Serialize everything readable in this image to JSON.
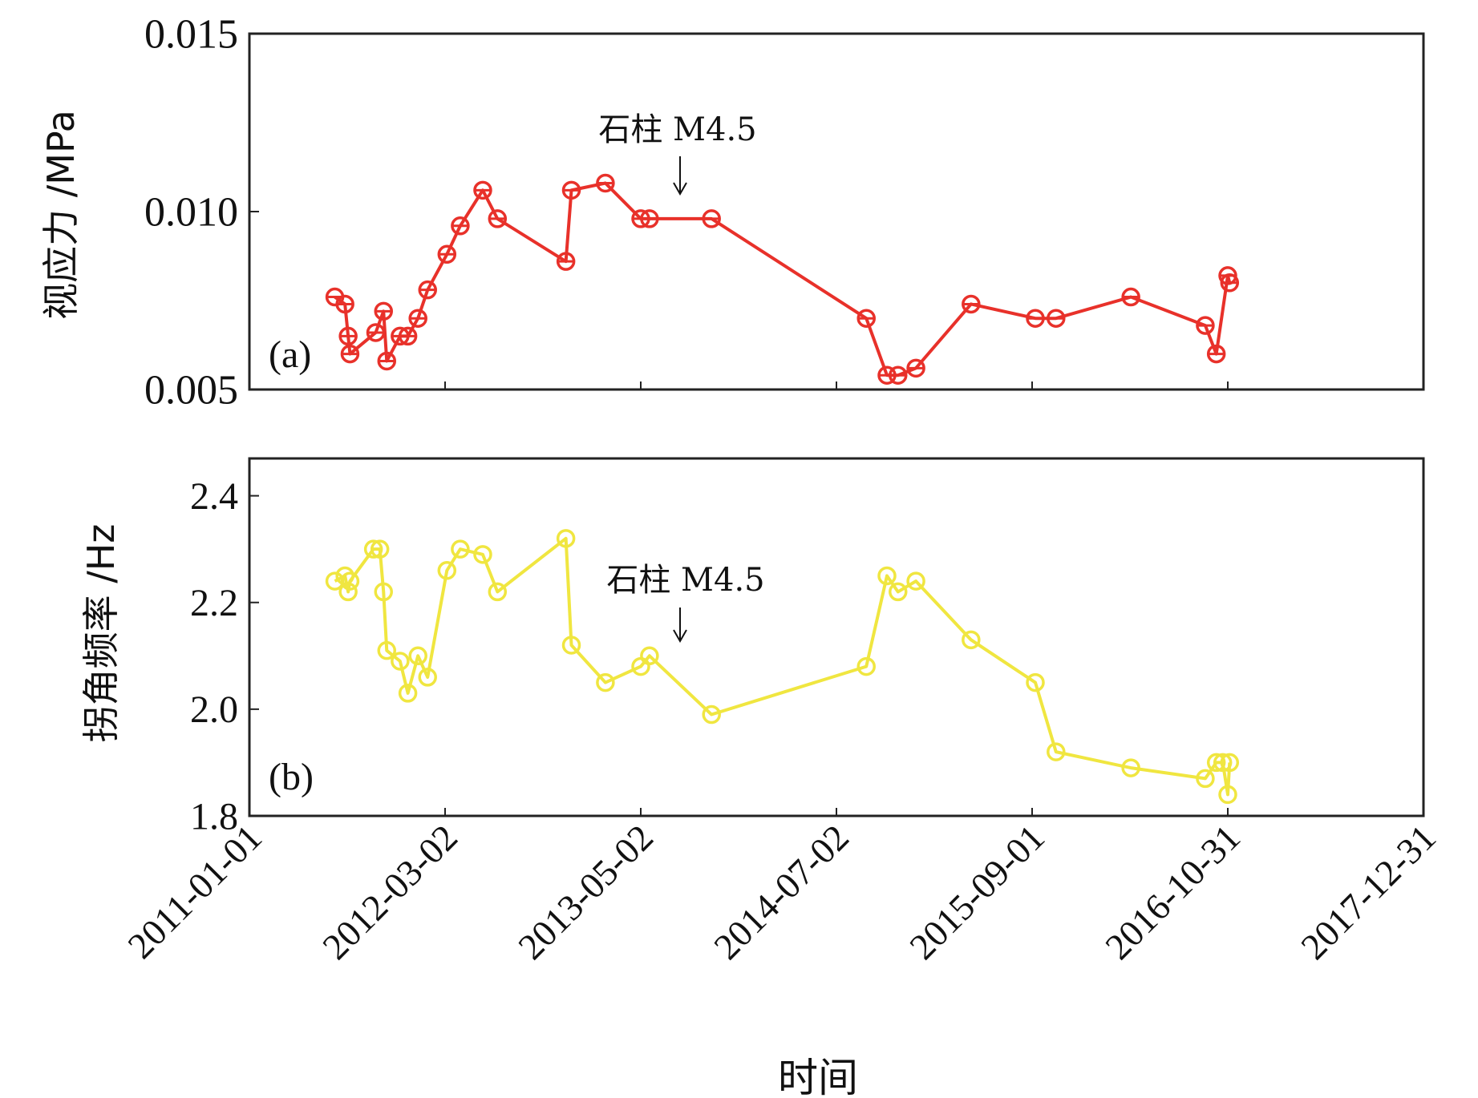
{
  "chart_data": [
    {
      "type": "line",
      "panel_label": "(a)",
      "ylabel": "视应力 /MPa",
      "ylim": [
        0.005,
        0.015
      ],
      "yticks": [
        "0.005",
        "0.010",
        "0.015"
      ],
      "ytick_values": [
        0.005,
        0.01,
        0.015
      ],
      "color": "#e8312a",
      "annotation": {
        "text": "石柱 M4.5",
        "x": "2013-07-14"
      },
      "series": [
        {
          "x": [
            "2011-07-06",
            "2011-07-28",
            "2011-08-04",
            "2011-08-08",
            "2011-10-03",
            "2011-10-20",
            "2011-10-27",
            "2011-11-25",
            "2011-12-12",
            "2012-01-03",
            "2012-01-24",
            "2012-03-06",
            "2012-04-04",
            "2012-05-23",
            "2012-06-24",
            "2012-11-20",
            "2012-12-02",
            "2013-02-14",
            "2013-05-02",
            "2013-05-21",
            "2013-10-03",
            "2014-09-05",
            "2014-10-20",
            "2014-11-13",
            "2014-12-22",
            "2015-04-21",
            "2015-09-08",
            "2015-10-23",
            "2016-04-03",
            "2016-09-12",
            "2016-10-06",
            "2016-10-31",
            "2016-11-04"
          ],
          "values": [
            0.0076,
            0.0074,
            0.0065,
            0.006,
            0.0066,
            0.0072,
            0.0058,
            0.0065,
            0.0065,
            0.007,
            0.0078,
            0.0088,
            0.0096,
            0.0106,
            0.0098,
            0.0086,
            0.0106,
            0.0108,
            0.0098,
            0.0098,
            0.0098,
            0.007,
            0.0054,
            0.0054,
            0.0056,
            0.0074,
            0.007,
            0.007,
            0.0076,
            0.0068,
            0.006,
            0.0082,
            0.008
          ]
        }
      ]
    },
    {
      "type": "line",
      "panel_label": "(b)",
      "ylabel": "拐角频率 /Hz",
      "ylim": [
        1.8,
        2.47
      ],
      "yticks": [
        "1.8",
        "2.0",
        "2.2",
        "2.4"
      ],
      "ytick_values": [
        1.8,
        2.0,
        2.2,
        2.4
      ],
      "color": "#f0e640",
      "annotation": {
        "text": "石柱 M4.5",
        "x": "2013-07-14"
      },
      "xlabel": "时间",
      "xticks": [
        "2011-01-01",
        "2012-03-02",
        "2013-05-02",
        "2014-07-02",
        "2015-09-01",
        "2016-10-31",
        "2017-12-31"
      ],
      "series": [
        {
          "x": [
            "2011-07-06",
            "2011-07-28",
            "2011-08-04",
            "2011-08-08",
            "2011-09-28",
            "2011-10-12",
            "2011-10-20",
            "2011-10-27",
            "2011-11-25",
            "2011-12-12",
            "2012-01-03",
            "2012-01-24",
            "2012-03-06",
            "2012-04-04",
            "2012-05-23",
            "2012-06-24",
            "2012-11-20",
            "2012-12-02",
            "2013-02-14",
            "2013-05-02",
            "2013-05-21",
            "2013-10-03",
            "2014-09-05",
            "2014-10-20",
            "2014-11-13",
            "2014-12-22",
            "2015-04-21",
            "2015-09-08",
            "2015-10-23",
            "2016-04-03",
            "2016-09-12",
            "2016-10-06",
            "2016-10-20",
            "2016-10-31",
            "2016-11-04"
          ],
          "values": [
            2.24,
            2.25,
            2.22,
            2.24,
            2.3,
            2.3,
            2.22,
            2.11,
            2.09,
            2.03,
            2.1,
            2.06,
            2.26,
            2.3,
            2.29,
            2.22,
            2.32,
            2.12,
            2.05,
            2.08,
            2.1,
            1.99,
            2.08,
            2.25,
            2.22,
            2.24,
            2.13,
            2.05,
            1.92,
            1.89,
            1.87,
            1.9,
            1.9,
            1.84,
            1.9
          ]
        }
      ]
    }
  ]
}
